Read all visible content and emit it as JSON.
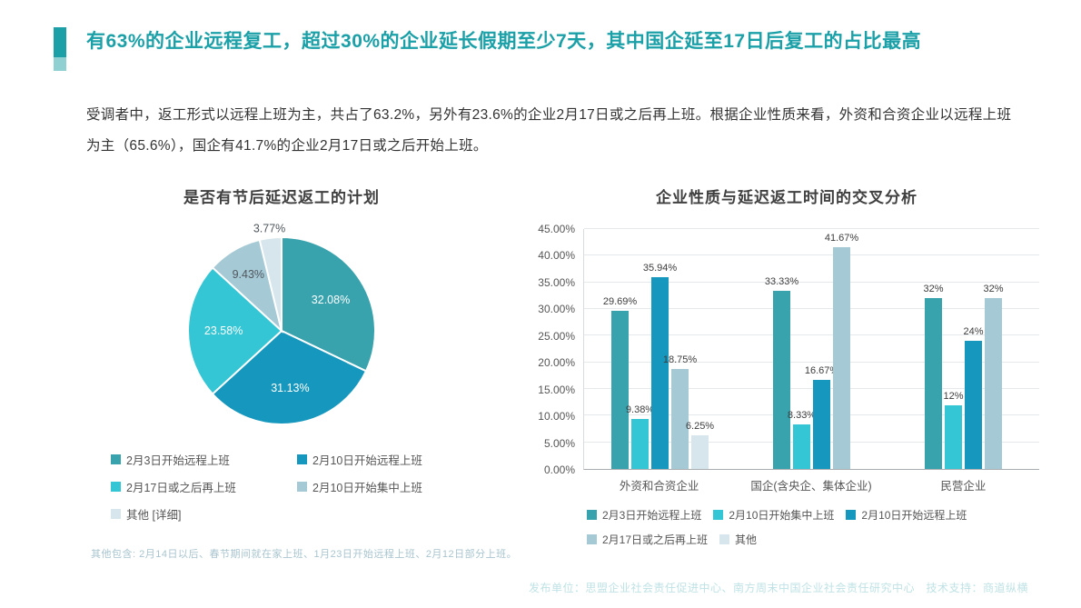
{
  "header": {
    "title": "有63%的企业远程复工，超过30%的企业延长假期至少7天，其中国企延至17日后复工的占比最高"
  },
  "intro": "受调者中，返工形式以远程上班为主，共占了63.2%，另外有23.6%的企业2月17日或之后再上班。根据企业性质来看，外资和合资企业以远程上班为主（65.6%），国企有41.7%的企业2月17日或之后开始上班。",
  "notes": {
    "pie_footnote": "其他包含: 2月14日以后、春节期间就在家上班、1月23日开始远程上班、2月12日部分上班。",
    "footer": "发布单位：思盟企业社会责任促进中心、南方周末中国企业社会责任研究中心　技术支持：商道纵横"
  },
  "colors": {
    "accent_teal": "#1BA0A8",
    "accent_teal_light": "#8FD0D3",
    "series_teal": "#38A2AD",
    "series_blue": "#1697BD",
    "series_cyan": "#34C6D4",
    "series_light_blue_gray": "#A6C9D6",
    "series_lightest": "#D6E6EC"
  },
  "chart_data": [
    {
      "type": "pie",
      "title": "是否有节后延迟返工的计划",
      "slices": [
        {
          "label": "2月3日开始远程上班",
          "value": 32.08,
          "display": "32.08%",
          "color": "#38A2AD",
          "label_style": "inside-white"
        },
        {
          "label": "2月10日开始远程上班",
          "value": 31.13,
          "display": "31.13%",
          "color": "#1697BD",
          "label_style": "inside-white"
        },
        {
          "label": "2月17日或之后再上班",
          "value": 23.58,
          "display": "23.58%",
          "color": "#34C6D4",
          "label_style": "inside-white"
        },
        {
          "label": "2月10日开始集中上班",
          "value": 9.43,
          "display": "9.43%",
          "color": "#A6C9D6",
          "label_style": "inside-dark"
        },
        {
          "label": "其他 [详细]",
          "value": 3.77,
          "display": "3.77%",
          "color": "#D6E6EC",
          "label_style": "outside-dark"
        }
      ]
    },
    {
      "type": "bar",
      "title": "企业性质与延迟返工时间的交叉分析",
      "categories": [
        "外资和合资企业",
        "国企(含央企、集体企业)",
        "民营企业"
      ],
      "series": [
        {
          "name": "2月3日开始远程上班",
          "color": "#38A2AD",
          "values": [
            29.69,
            33.33,
            32
          ],
          "labels": [
            "29.69%",
            "33.33%",
            "32%"
          ]
        },
        {
          "name": "2月10日开始集中上班",
          "color": "#34C6D4",
          "values": [
            9.38,
            8.33,
            12
          ],
          "labels": [
            "9.38%",
            "8.33%",
            "12%"
          ]
        },
        {
          "name": "2月10日开始远程上班",
          "color": "#1697BD",
          "values": [
            35.94,
            16.67,
            24
          ],
          "labels": [
            "35.94%",
            "16.67%",
            "24%"
          ]
        },
        {
          "name": "2月17日或之后再上班",
          "color": "#A6C9D6",
          "values": [
            18.75,
            41.67,
            32
          ],
          "labels": [
            "18.75%",
            "41.67%",
            "32%"
          ]
        },
        {
          "name": "其他",
          "color": "#D6E6EC",
          "values": [
            6.25,
            0,
            0
          ],
          "labels": [
            "6.25%",
            "",
            ""
          ]
        }
      ],
      "y_axis": {
        "min": 0,
        "max": 45,
        "step": 5
      },
      "y_ticks": [
        "0.00%",
        "5.00%",
        "10.00%",
        "15.00%",
        "20.00%",
        "25.00%",
        "30.00%",
        "35.00%",
        "40.00%",
        "45.00%"
      ],
      "legend_position": "bottom",
      "grid": true
    }
  ]
}
